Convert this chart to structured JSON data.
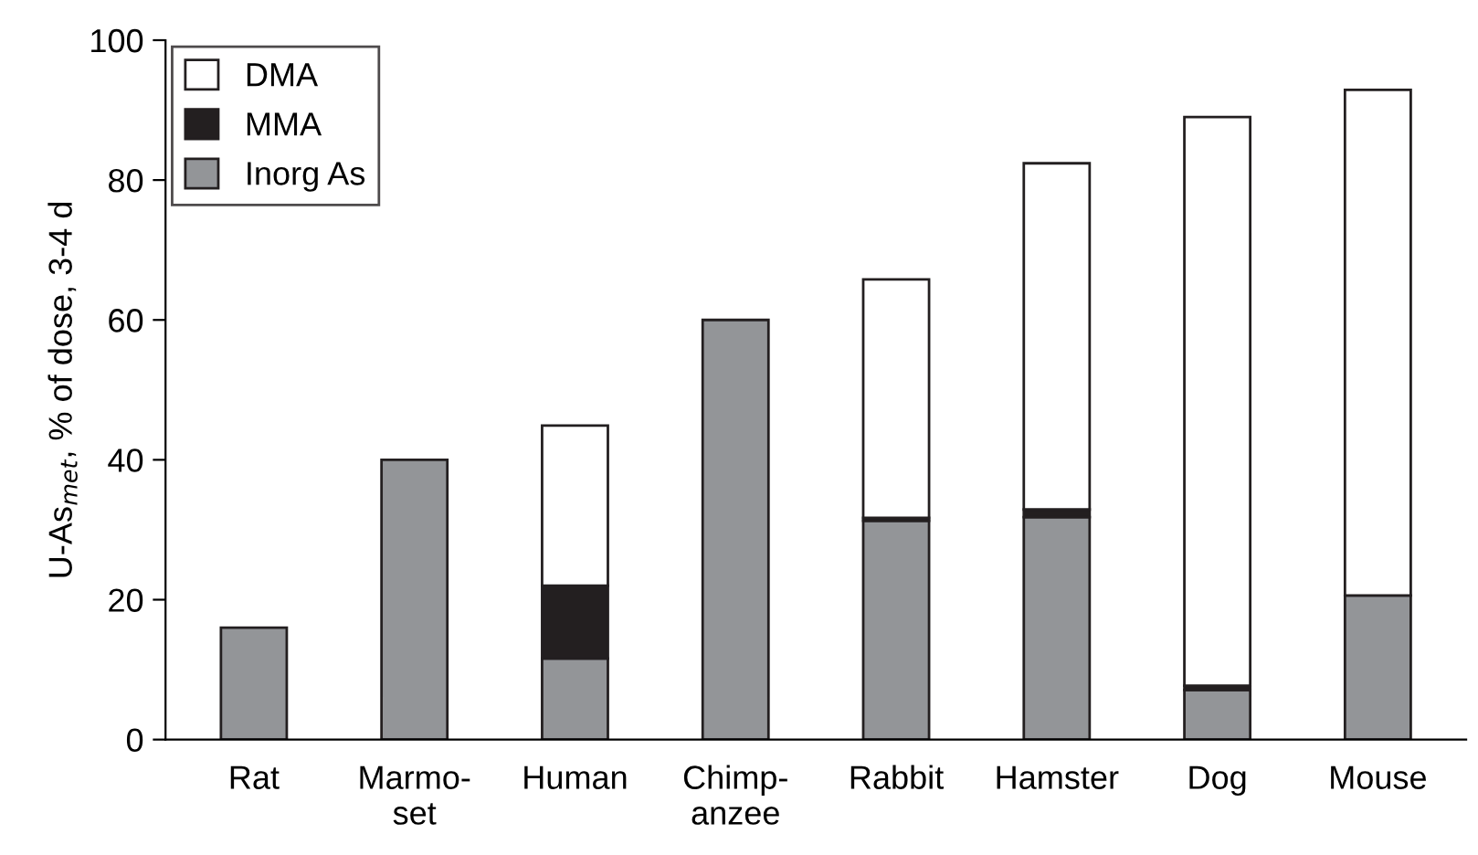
{
  "chart_data": {
    "type": "bar",
    "stacked": true,
    "ylabel": "U-As$_{met}$, % of dose, 3-4 d",
    "categories": [
      "Rat",
      "Marmo-\nset",
      "Human",
      "Chimp-\nanzee",
      "Rabbit",
      "Hamster",
      "Dog",
      "Mouse"
    ],
    "series": [
      {
        "name": "Inorg As",
        "color": "#939598",
        "values": [
          16.0,
          40.0,
          11.6,
          60.0,
          31.3,
          31.8,
          7.1,
          20.6
        ]
      },
      {
        "name": "MMA",
        "color": "#231f20",
        "values": [
          0,
          0,
          10.4,
          0,
          0.4,
          1.1,
          0.6,
          0
        ]
      },
      {
        "name": "DMA",
        "color": "#ffffff",
        "values": [
          0,
          0,
          22.9,
          0,
          34.1,
          49.5,
          81.3,
          72.3
        ]
      }
    ],
    "ylim": [
      0,
      100
    ],
    "yticks": [
      0,
      20,
      40,
      60,
      80,
      100
    ],
    "grid": false,
    "legend": "top left"
  }
}
